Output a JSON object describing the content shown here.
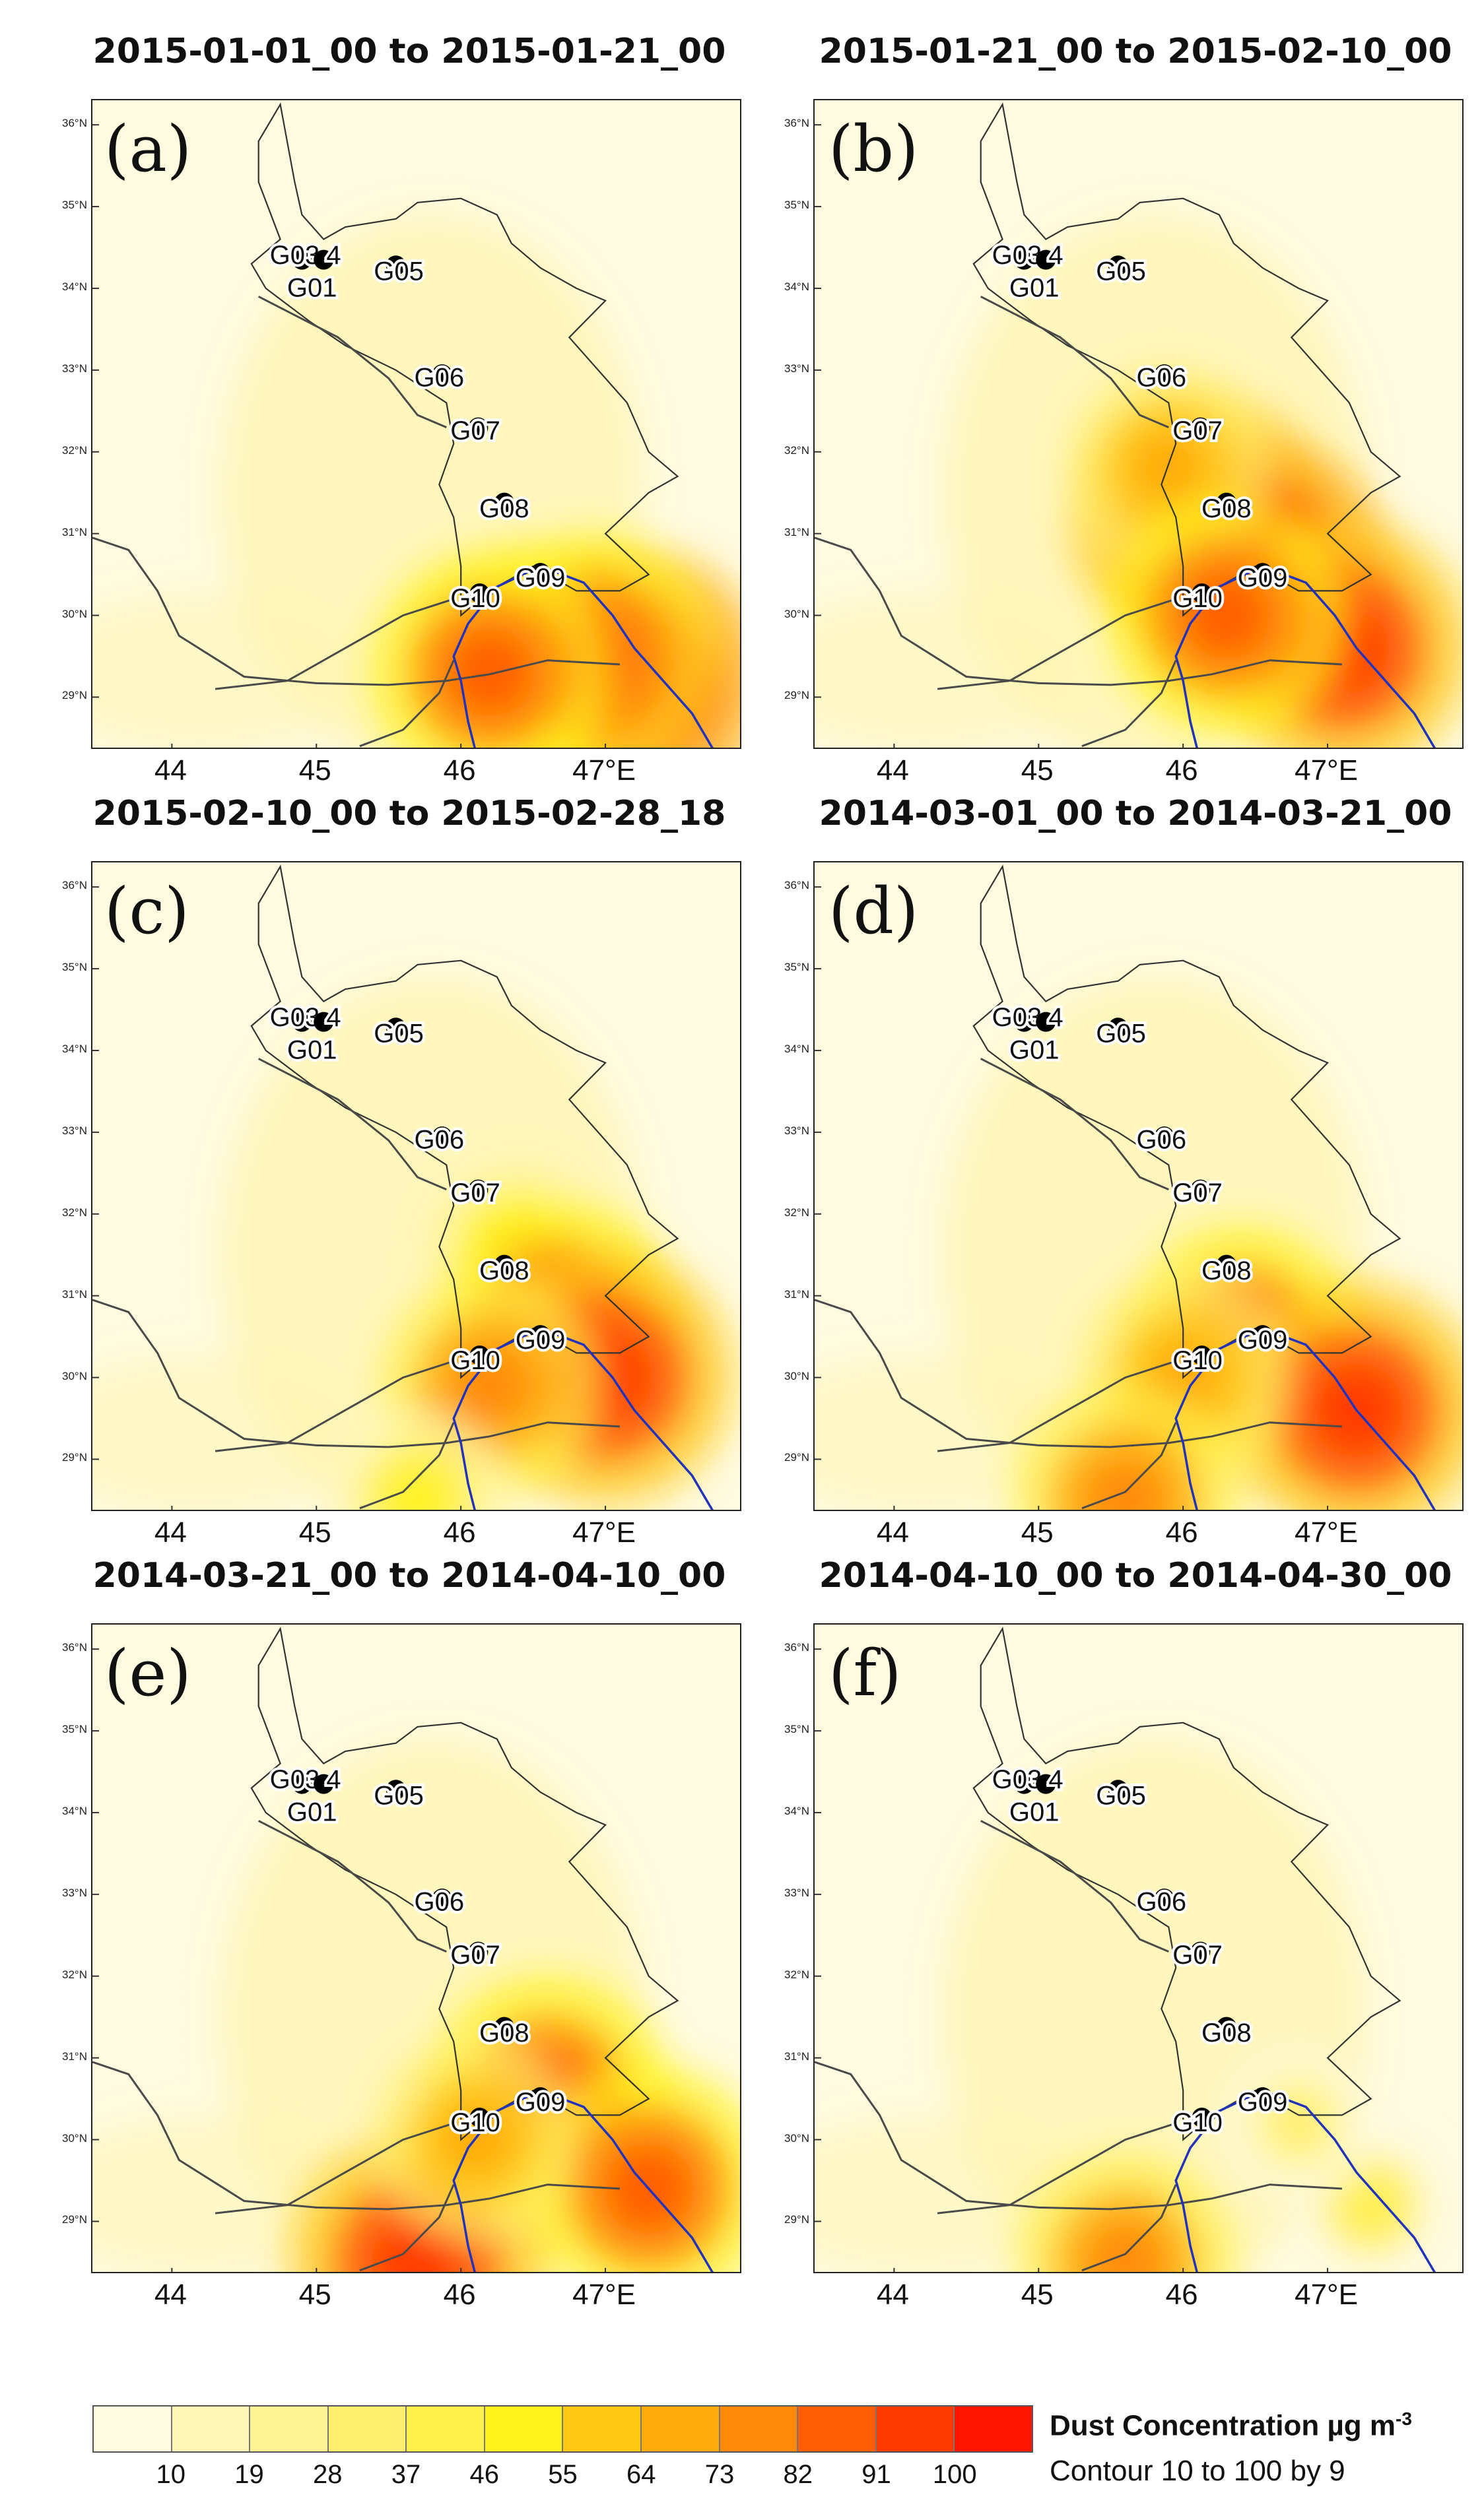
{
  "chart_data": [
    {
      "type": "heatmap",
      "panel": "(a)",
      "title": "2015-01-01_00 to 2015-01-21_00",
      "hotspots": [
        {
          "lon": 46.45,
          "lat": 29.6,
          "value": 80
        },
        {
          "lon": 47.2,
          "lat": 29.2,
          "value": 105
        },
        {
          "lon": 46.9,
          "lat": 29.5,
          "value": 95
        },
        {
          "lon": 46.2,
          "lat": 29.3,
          "value": 92
        }
      ]
    },
    {
      "type": "heatmap",
      "panel": "(b)",
      "title": "2015-01-21_00 to 2015-02-10_00",
      "hotspots": [
        {
          "lon": 46.1,
          "lat": 31.2,
          "value": 100
        },
        {
          "lon": 46.5,
          "lat": 30.5,
          "value": 110
        },
        {
          "lon": 47.1,
          "lat": 29.6,
          "value": 100
        },
        {
          "lon": 45.9,
          "lat": 31.8,
          "value": 70
        },
        {
          "lon": 46.3,
          "lat": 30.0,
          "value": 90
        }
      ]
    },
    {
      "type": "heatmap",
      "panel": "(c)",
      "title": "2015-02-10_00 to 2015-02-28_18",
      "hotspots": [
        {
          "lon": 46.4,
          "lat": 31.5,
          "value": 60
        },
        {
          "lon": 46.7,
          "lat": 30.7,
          "value": 90
        },
        {
          "lon": 47.0,
          "lat": 30.0,
          "value": 100
        },
        {
          "lon": 46.2,
          "lat": 29.9,
          "value": 80
        },
        {
          "lon": 45.7,
          "lat": 28.5,
          "value": 55
        }
      ]
    },
    {
      "type": "heatmap",
      "panel": "(d)",
      "title": "2014-03-01_00 to 2014-03-21_00",
      "hotspots": [
        {
          "lon": 46.4,
          "lat": 30.4,
          "value": 90
        },
        {
          "lon": 47.2,
          "lat": 29.6,
          "value": 100
        },
        {
          "lon": 46.0,
          "lat": 30.0,
          "value": 75
        },
        {
          "lon": 45.6,
          "lat": 28.5,
          "value": 85
        }
      ]
    },
    {
      "type": "heatmap",
      "panel": "(e)",
      "title": "2014-03-21_00 to 2014-04-10_00",
      "hotspots": [
        {
          "lon": 46.6,
          "lat": 30.5,
          "value": 95
        },
        {
          "lon": 47.3,
          "lat": 29.4,
          "value": 95
        },
        {
          "lon": 45.7,
          "lat": 28.5,
          "value": 100
        },
        {
          "lon": 46.1,
          "lat": 30.0,
          "value": 70
        }
      ]
    },
    {
      "type": "heatmap",
      "panel": "(f)",
      "title": "2014-04-10_00 to 2014-04-30_00",
      "hotspots": [
        {
          "lon": 45.6,
          "lat": 28.5,
          "value": 80
        },
        {
          "lon": 47.3,
          "lat": 29.2,
          "value": 45
        },
        {
          "lon": 46.8,
          "lat": 30.2,
          "value": 40
        }
      ]
    }
  ],
  "map": {
    "lon_range": [
      43.45,
      47.95
    ],
    "lat_range": [
      28.35,
      36.3
    ],
    "lat_ticks": [
      "36°N",
      "35°N",
      "34°N",
      "33°N",
      "32°N",
      "31°N",
      "30°N",
      "29°N"
    ],
    "lat_tick_values": [
      36,
      35,
      34,
      33,
      32,
      31,
      30,
      29
    ],
    "lon_ticks": [
      "44",
      "45",
      "46",
      "47°E"
    ],
    "lon_tick_values": [
      44,
      45,
      46,
      47
    ],
    "panel_labels": [
      "(a)",
      "(b)",
      "(c)",
      "(d)",
      "(e)",
      "(f)"
    ],
    "stations": [
      {
        "name": "G01",
        "lon": 44.85,
        "lat": 34.35,
        "label_lon": 44.97,
        "label_lat": 33.9
      },
      {
        "name": "G03",
        "lon": 44.9,
        "lat": 34.35,
        "label_lon": 44.85,
        "label_lat": 34.3
      },
      {
        "name": "4",
        "lon": 45.05,
        "lat": 34.35,
        "label_lon": 45.12,
        "label_lat": 34.3
      },
      {
        "name": "G05",
        "lon": 45.55,
        "lat": 34.28,
        "label_lon": 45.57,
        "label_lat": 34.1
      },
      {
        "name": "G06",
        "lon": 45.87,
        "lat": 32.95,
        "label_lon": 45.85,
        "label_lat": 32.8
      },
      {
        "name": "G07",
        "lon": 46.12,
        "lat": 32.3,
        "label_lon": 46.1,
        "label_lat": 32.15
      },
      {
        "name": "G08",
        "lon": 46.3,
        "lat": 31.38,
        "label_lon": 46.3,
        "label_lat": 31.2
      },
      {
        "name": "G09",
        "lon": 46.55,
        "lat": 30.52,
        "label_lon": 46.55,
        "label_lat": 30.35
      },
      {
        "name": "G10",
        "lon": 46.13,
        "lat": 30.27,
        "label_lon": 46.1,
        "label_lat": 30.1
      }
    ]
  },
  "colorbar": {
    "colors": [
      "#fffbe0",
      "#fff6b8",
      "#fff393",
      "#ffef6e",
      "#fff04c",
      "#fff21c",
      "#ffc815",
      "#ffab0e",
      "#ff8a09",
      "#ff5e06",
      "#ff3a03",
      "#ff1400"
    ],
    "labels": [
      "10",
      "19",
      "28",
      "37",
      "46",
      "55",
      "64",
      "73",
      "82",
      "91",
      "100"
    ],
    "title": "Dust Concentration µg m",
    "title_sup": "-3",
    "subtitle": "Contour 10 to 100 by 9"
  }
}
